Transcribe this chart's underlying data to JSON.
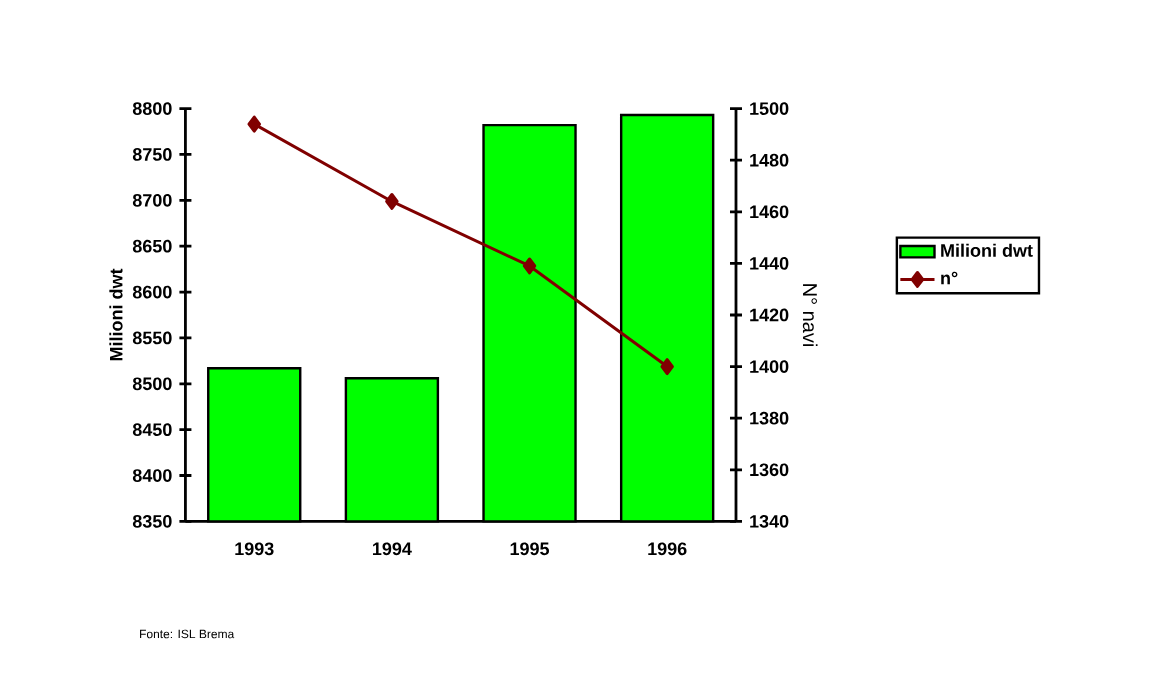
{
  "chart_data": {
    "type": "bar",
    "categories": [
      "1993",
      "1994",
      "1995",
      "1996"
    ],
    "series": [
      {
        "name": "Milioni dwt",
        "color": "#00ff00",
        "values": [
          8517,
          8506,
          8782,
          8793
        ]
      },
      {
        "name": "n°",
        "type": "line",
        "axis": "y2",
        "color": "#800000",
        "values": [
          1494,
          1464,
          1439,
          1400
        ]
      }
    ],
    "ylabel": "Milioni dwt",
    "y2label": "N° navi",
    "ylim": [
      8350,
      8800
    ],
    "yticks": [
      8350,
      8400,
      8450,
      8500,
      8550,
      8600,
      8650,
      8700,
      8750,
      8800
    ],
    "y2lim": [
      1340,
      1500
    ],
    "y2ticks": [
      1340,
      1360,
      1380,
      1400,
      1420,
      1440,
      1460,
      1480,
      1500
    ],
    "marker": "diamond",
    "line_style": "solid",
    "legend": "right",
    "annotations": [
      "Fonte: ISL Brema"
    ]
  }
}
